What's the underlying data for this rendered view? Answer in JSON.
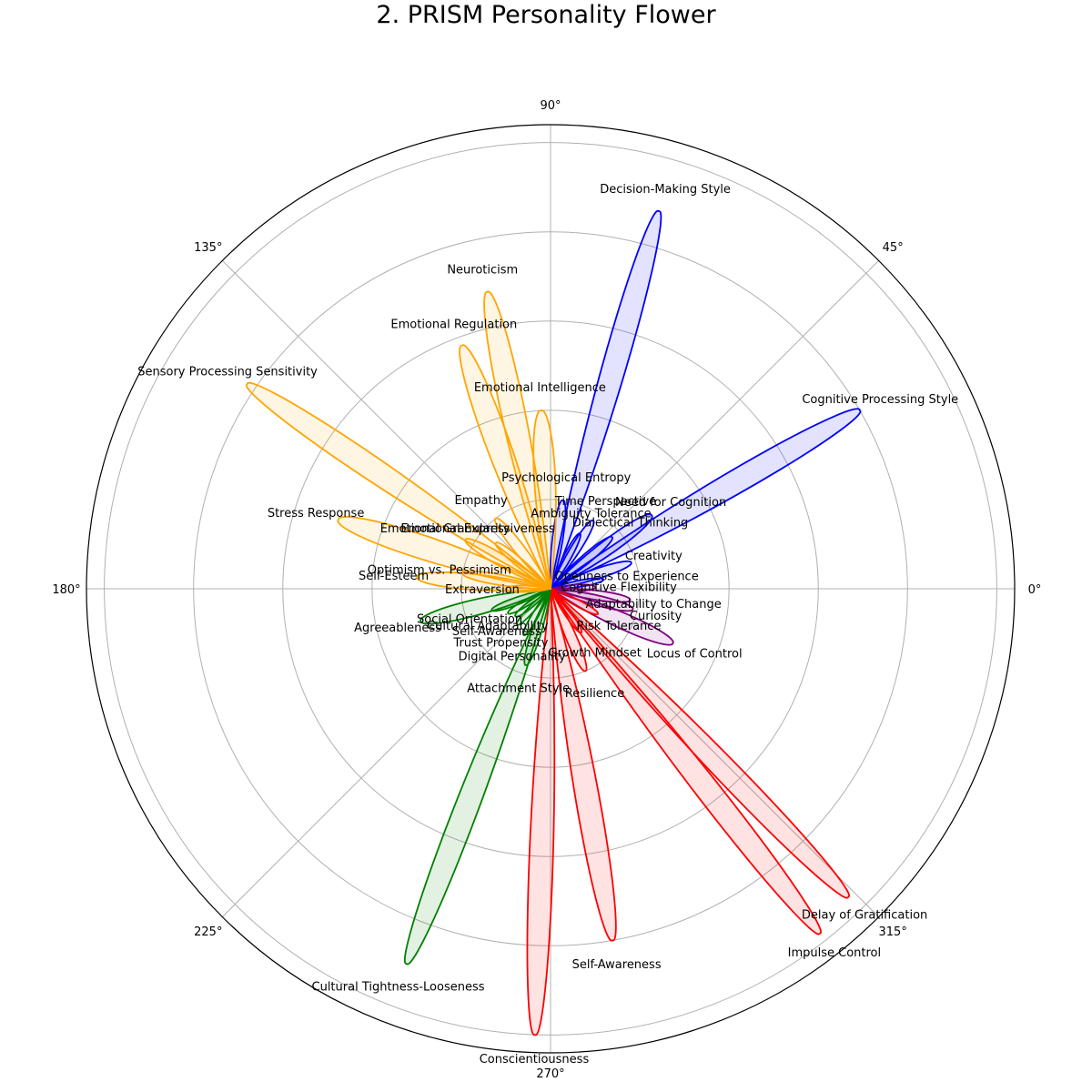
{
  "chart_data": {
    "type": "polar-petal",
    "title": "2. PRISM Personality Flower",
    "angle_ticks": [
      "0°",
      "45°",
      "90°",
      "135°",
      "180°",
      "225°",
      "270°",
      "315°"
    ],
    "radial_grid": [
      1,
      2,
      3,
      4,
      5
    ],
    "rmax": 5.2,
    "grid": true,
    "colors": {
      "cognitive": "#0000ff",
      "exploration": "#800080",
      "self_regulation": "#ff0000",
      "social": "#008000",
      "emotional": "#ffa500",
      "grid": "#b0b0b0"
    },
    "petals": [
      {
        "label": "Decision-Making Style",
        "angle": 74,
        "value": 4.4,
        "group": "cognitive"
      },
      {
        "label": "Cognitive Processing Style",
        "angle": 30,
        "value": 4.0,
        "group": "cognitive"
      },
      {
        "label": "Need for Cognition",
        "angle": 36,
        "value": 1.4,
        "group": "cognitive"
      },
      {
        "label": "Time Perspective",
        "angle": 58,
        "value": 0.9,
        "group": "cognitive"
      },
      {
        "label": "Psychological Entropy",
        "angle": 82,
        "value": 1.0,
        "group": "cognitive"
      },
      {
        "label": "Ambiguity Tolerance",
        "angle": 62,
        "value": 0.7,
        "group": "cognitive"
      },
      {
        "label": "Dialectical Thinking",
        "angle": 40,
        "value": 0.9,
        "group": "cognitive"
      },
      {
        "label": "Creativity",
        "angle": 18,
        "value": 0.95,
        "group": "cognitive"
      },
      {
        "label": "Openness to Experience",
        "angle": 10,
        "value": 0.6,
        "group": "cognitive"
      },
      {
        "label": "Cognitive Flexibility",
        "angle": 2,
        "value": 0.5,
        "group": "exploration"
      },
      {
        "label": "Adaptability to Change",
        "angle": -8,
        "value": 0.9,
        "group": "exploration"
      },
      {
        "label": "Curiosity",
        "angle": -14,
        "value": 0.95,
        "group": "exploration"
      },
      {
        "label": "Locus of Control",
        "angle": -24,
        "value": 1.5,
        "group": "exploration"
      },
      {
        "label": "Risk Tolerance",
        "angle": -28,
        "value": 0.6,
        "group": "self_regulation"
      },
      {
        "label": "Growth Mindset",
        "angle": -55,
        "value": 0.6,
        "group": "self_regulation"
      },
      {
        "label": "Resilience",
        "angle": -67,
        "value": 1.0,
        "group": "self_regulation"
      },
      {
        "label": "Delay of Gratification",
        "angle": -46,
        "value": 4.8,
        "group": "self_regulation"
      },
      {
        "label": "Impulse Control",
        "angle": -52,
        "value": 4.9,
        "group": "self_regulation"
      },
      {
        "label": "Self-Awareness",
        "angle": -80,
        "value": 4.0,
        "group": "self_regulation"
      },
      {
        "label": "Conscientiousness",
        "angle": -92,
        "value": 5.0,
        "group": "self_regulation"
      },
      {
        "label": "Cultural Tightness-Looseness",
        "angle": -111,
        "value": 4.5,
        "group": "social"
      },
      {
        "label": "Attachment Style",
        "angle": -108,
        "value": 0.9,
        "group": "social"
      },
      {
        "label": "Digital Personality",
        "angle": -120,
        "value": 0.6,
        "group": "social"
      },
      {
        "label": "Trust Propensity",
        "angle": -133,
        "value": 0.55,
        "group": "social"
      },
      {
        "label": "Self-Awareness",
        "angle": -142,
        "value": 0.5,
        "group": "social"
      },
      {
        "label": "Social Orientation",
        "angle": -160,
        "value": 0.7,
        "group": "social"
      },
      {
        "label": "Cultural Adaptability",
        "angle": -150,
        "value": 0.55,
        "group": "social"
      },
      {
        "label": "Agreeableness",
        "angle": -166,
        "value": 1.5,
        "group": "social"
      },
      {
        "label": "Extraversion",
        "angle": -180,
        "value": 0.5,
        "group": "emotional"
      },
      {
        "label": "Self-Esteem",
        "angle": 175,
        "value": 1.5,
        "group": "emotional"
      },
      {
        "label": "Stress Response",
        "angle": 162,
        "value": 2.5,
        "group": "emotional"
      },
      {
        "label": "Optimism vs. Pessimism",
        "angle": 170,
        "value": 1.0,
        "group": "emotional"
      },
      {
        "label": "Emotional Expressiveness",
        "angle": 140,
        "value": 0.8,
        "group": "emotional"
      },
      {
        "label": "Emotional Granularity",
        "angle": 150,
        "value": 1.1,
        "group": "emotional"
      },
      {
        "label": "Empathy",
        "angle": 128,
        "value": 1.0,
        "group": "emotional"
      },
      {
        "label": "Sensory Processing Sensitivity",
        "angle": 146,
        "value": 4.1,
        "group": "emotional"
      },
      {
        "label": "Emotional Regulation",
        "angle": 110,
        "value": 2.9,
        "group": "emotional"
      },
      {
        "label": "Neuroticism",
        "angle": 102,
        "value": 3.4,
        "group": "emotional"
      },
      {
        "label": "Emotional Intelligence",
        "angle": 93,
        "value": 2.0,
        "group": "emotional"
      }
    ]
  }
}
